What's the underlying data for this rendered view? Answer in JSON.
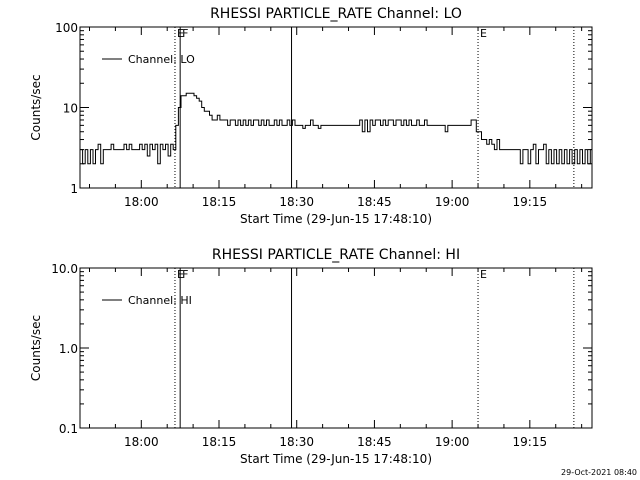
{
  "footer_timestamp": "29-Oct-2021 08:40",
  "chart_data": [
    {
      "type": "line",
      "title": "RHESSI PARTICLE_RATE Channel: LO",
      "xlabel": "Start Time (29-Jun-15 17:48:10)",
      "ylabel": "Counts/sec",
      "yscale": "log",
      "ylim": [
        1,
        100
      ],
      "xlim": [
        "17:48:10",
        "19:27:00"
      ],
      "x_ticks": [
        "18:00",
        "18:15",
        "18:30",
        "18:45",
        "19:00",
        "19:15"
      ],
      "y_ticks": [
        "1",
        "10",
        "100"
      ],
      "grid": false,
      "legend": {
        "placement": "top-left",
        "entries": [
          "Channel: LO"
        ]
      },
      "markers": [
        {
          "time": "18:06:30",
          "label": "E",
          "style": "dotted"
        },
        {
          "time": "18:07:30",
          "label": "F",
          "style": "solid"
        },
        {
          "time": "18:29:00",
          "label": "",
          "style": "solid"
        },
        {
          "time": "19:05:00",
          "label": "E",
          "style": "dotted"
        },
        {
          "time": "19:23:30",
          "label": "",
          "style": "dotted"
        }
      ],
      "series": [
        {
          "name": "Channel: LO",
          "points": [
            [
              "17:48:10",
              3
            ],
            [
              "17:48:40",
              2
            ],
            [
              "17:49:10",
              3
            ],
            [
              "17:49:40",
              2
            ],
            [
              "17:50:10",
              3
            ],
            [
              "17:50:40",
              2
            ],
            [
              "17:51:10",
              3
            ],
            [
              "17:51:40",
              3.5
            ],
            [
              "17:52:10",
              2
            ],
            [
              "17:52:40",
              3
            ],
            [
              "17:53:10",
              3
            ],
            [
              "17:53:40",
              3
            ],
            [
              "17:54:10",
              3.5
            ],
            [
              "17:54:40",
              3
            ],
            [
              "17:55:10",
              3
            ],
            [
              "17:55:40",
              3
            ],
            [
              "17:56:10",
              3
            ],
            [
              "17:56:40",
              3.5
            ],
            [
              "17:57:10",
              3
            ],
            [
              "17:57:40",
              3.5
            ],
            [
              "17:58:10",
              3
            ],
            [
              "17:58:40",
              3
            ],
            [
              "17:59:10",
              3
            ],
            [
              "17:59:40",
              3.5
            ],
            [
              "18:00:10",
              3
            ],
            [
              "18:00:40",
              3.5
            ],
            [
              "18:01:10",
              2.5
            ],
            [
              "18:01:40",
              3.5
            ],
            [
              "18:02:10",
              3
            ],
            [
              "18:02:40",
              3.5
            ],
            [
              "18:03:10",
              2
            ],
            [
              "18:03:40",
              3.5
            ],
            [
              "18:04:10",
              3
            ],
            [
              "18:04:40",
              3.5
            ],
            [
              "18:05:10",
              2.5
            ],
            [
              "18:05:40",
              3.5
            ],
            [
              "18:06:10",
              3
            ],
            [
              "18:06:40",
              6
            ],
            [
              "18:07:10",
              10
            ],
            [
              "18:07:40",
              14
            ],
            [
              "18:08:10",
              14
            ],
            [
              "18:08:40",
              15
            ],
            [
              "18:09:10",
              15
            ],
            [
              "18:09:40",
              15
            ],
            [
              "18:10:10",
              14
            ],
            [
              "18:10:40",
              13
            ],
            [
              "18:11:10",
              12
            ],
            [
              "18:11:40",
              10
            ],
            [
              "18:12:10",
              9
            ],
            [
              "18:12:40",
              9
            ],
            [
              "18:13:10",
              8
            ],
            [
              "18:13:40",
              7
            ],
            [
              "18:14:10",
              7
            ],
            [
              "18:14:40",
              8
            ],
            [
              "18:15:10",
              7
            ],
            [
              "18:15:40",
              7
            ],
            [
              "18:16:10",
              7
            ],
            [
              "18:16:40",
              6
            ],
            [
              "18:17:10",
              7
            ],
            [
              "18:17:40",
              7
            ],
            [
              "18:18:10",
              6
            ],
            [
              "18:18:40",
              7
            ],
            [
              "18:19:10",
              6
            ],
            [
              "18:19:40",
              7
            ],
            [
              "18:20:10",
              6
            ],
            [
              "18:20:40",
              7
            ],
            [
              "18:21:10",
              6
            ],
            [
              "18:21:40",
              7
            ],
            [
              "18:22:10",
              7
            ],
            [
              "18:22:40",
              6
            ],
            [
              "18:23:10",
              7
            ],
            [
              "18:23:40",
              6
            ],
            [
              "18:24:10",
              7
            ],
            [
              "18:24:40",
              6
            ],
            [
              "18:25:10",
              6
            ],
            [
              "18:25:40",
              7
            ],
            [
              "18:26:10",
              6
            ],
            [
              "18:26:40",
              7
            ],
            [
              "18:27:10",
              6
            ],
            [
              "18:27:40",
              6
            ],
            [
              "18:28:10",
              7
            ],
            [
              "18:28:40",
              6
            ],
            [
              "18:29:10",
              7
            ],
            [
              "18:29:40",
              6
            ],
            [
              "18:30:10",
              6
            ],
            [
              "18:30:40",
              6
            ],
            [
              "18:31:10",
              5.5
            ],
            [
              "18:31:40",
              6
            ],
            [
              "18:32:10",
              6
            ],
            [
              "18:32:40",
              7
            ],
            [
              "18:33:10",
              6
            ],
            [
              "18:33:40",
              6
            ],
            [
              "18:34:10",
              5.5
            ],
            [
              "18:34:40",
              6
            ],
            [
              "18:35:10",
              6
            ],
            [
              "18:35:40",
              6
            ],
            [
              "18:36:10",
              6
            ],
            [
              "18:36:40",
              6
            ],
            [
              "18:37:10",
              6
            ],
            [
              "18:37:40",
              6
            ],
            [
              "18:38:10",
              6
            ],
            [
              "18:38:40",
              6
            ],
            [
              "18:39:10",
              6
            ],
            [
              "18:39:40",
              6
            ],
            [
              "18:40:10",
              6
            ],
            [
              "18:40:40",
              6
            ],
            [
              "18:41:10",
              6
            ],
            [
              "18:41:40",
              6
            ],
            [
              "18:42:10",
              7
            ],
            [
              "18:42:40",
              5
            ],
            [
              "18:43:10",
              7
            ],
            [
              "18:43:40",
              5
            ],
            [
              "18:44:10",
              7
            ],
            [
              "18:44:40",
              6
            ],
            [
              "18:45:10",
              7
            ],
            [
              "18:45:40",
              7
            ],
            [
              "18:46:10",
              6
            ],
            [
              "18:46:40",
              7
            ],
            [
              "18:47:10",
              6
            ],
            [
              "18:47:40",
              7
            ],
            [
              "18:48:10",
              7
            ],
            [
              "18:48:40",
              6
            ],
            [
              "18:49:10",
              7
            ],
            [
              "18:49:40",
              7
            ],
            [
              "18:50:10",
              6
            ],
            [
              "18:50:40",
              7
            ],
            [
              "18:51:10",
              6
            ],
            [
              "18:51:40",
              7
            ],
            [
              "18:52:10",
              6
            ],
            [
              "18:52:40",
              6
            ],
            [
              "18:53:10",
              7
            ],
            [
              "18:53:40",
              6
            ],
            [
              "18:54:10",
              6
            ],
            [
              "18:54:40",
              7
            ],
            [
              "18:55:10",
              6
            ],
            [
              "18:55:40",
              6
            ],
            [
              "18:56:10",
              6
            ],
            [
              "18:56:40",
              6
            ],
            [
              "18:57:10",
              6
            ],
            [
              "18:57:40",
              6
            ],
            [
              "18:58:10",
              6
            ],
            [
              "18:58:40",
              5
            ],
            [
              "18:59:10",
              6
            ],
            [
              "18:59:40",
              6
            ],
            [
              "19:00:10",
              6
            ],
            [
              "19:00:40",
              6
            ],
            [
              "19:01:10",
              6
            ],
            [
              "19:01:40",
              6
            ],
            [
              "19:02:10",
              6
            ],
            [
              "19:02:40",
              6
            ],
            [
              "19:03:10",
              6
            ],
            [
              "19:03:40",
              7
            ],
            [
              "19:04:10",
              7
            ],
            [
              "19:04:40",
              5
            ],
            [
              "19:05:10",
              5
            ],
            [
              "19:05:40",
              4
            ],
            [
              "19:06:10",
              4
            ],
            [
              "19:06:40",
              3.5
            ],
            [
              "19:07:10",
              4
            ],
            [
              "19:07:40",
              3.5
            ],
            [
              "19:08:10",
              3
            ],
            [
              "19:08:40",
              4
            ],
            [
              "19:09:10",
              3
            ],
            [
              "19:09:40",
              3
            ],
            [
              "19:10:10",
              3
            ],
            [
              "19:10:40",
              3
            ],
            [
              "19:11:10",
              3
            ],
            [
              "19:11:40",
              3
            ],
            [
              "19:12:10",
              3
            ],
            [
              "19:12:40",
              3
            ],
            [
              "19:13:10",
              2
            ],
            [
              "19:13:40",
              3
            ],
            [
              "19:14:10",
              3
            ],
            [
              "19:14:40",
              2
            ],
            [
              "19:15:10",
              3
            ],
            [
              "19:15:40",
              3.5
            ],
            [
              "19:16:10",
              2
            ],
            [
              "19:16:40",
              3
            ],
            [
              "19:17:10",
              3
            ],
            [
              "19:17:40",
              3.5
            ],
            [
              "19:18:10",
              2
            ],
            [
              "19:18:40",
              3
            ],
            [
              "19:19:10",
              2
            ],
            [
              "19:19:40",
              3
            ],
            [
              "19:20:10",
              2
            ],
            [
              "19:20:40",
              3
            ],
            [
              "19:21:10",
              2
            ],
            [
              "19:21:40",
              3
            ],
            [
              "19:22:10",
              2
            ],
            [
              "19:22:40",
              3
            ],
            [
              "19:23:10",
              2
            ],
            [
              "19:23:40",
              3
            ],
            [
              "19:24:10",
              2
            ],
            [
              "19:24:40",
              3
            ],
            [
              "19:25:10",
              2
            ],
            [
              "19:25:40",
              3
            ],
            [
              "19:26:10",
              2
            ],
            [
              "19:26:40",
              3
            ]
          ]
        }
      ]
    },
    {
      "type": "line",
      "title": "RHESSI PARTICLE_RATE Channel: HI",
      "xlabel": "Start Time (29-Jun-15 17:48:10)",
      "ylabel": "Counts/sec",
      "yscale": "log",
      "ylim": [
        0.1,
        10
      ],
      "xlim": [
        "17:48:10",
        "19:27:00"
      ],
      "x_ticks": [
        "18:00",
        "18:15",
        "18:30",
        "18:45",
        "19:00",
        "19:15"
      ],
      "y_ticks": [
        "0.1",
        "1.0",
        "10.0"
      ],
      "grid": false,
      "legend": {
        "placement": "top-left",
        "entries": [
          "Channel: HI"
        ]
      },
      "markers": [
        {
          "time": "18:06:30",
          "label": "E",
          "style": "dotted"
        },
        {
          "time": "18:07:30",
          "label": "F",
          "style": "solid"
        },
        {
          "time": "18:29:00",
          "label": "",
          "style": "solid"
        },
        {
          "time": "19:05:00",
          "label": "E",
          "style": "dotted"
        },
        {
          "time": "19:23:30",
          "label": "",
          "style": "dotted"
        }
      ],
      "series": [
        {
          "name": "Channel: HI",
          "points": []
        }
      ]
    }
  ]
}
